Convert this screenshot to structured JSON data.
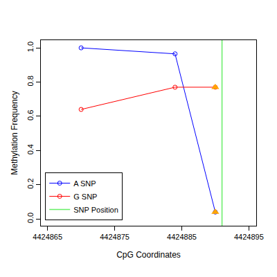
{
  "chart_data": {
    "type": "line",
    "x_label": "CpG Coordinates",
    "y_label": "Methylation Frequency",
    "xlim": [
      4424864,
      4424896.1
    ],
    "xticks": [
      4424865,
      4424875,
      4424885,
      4424895
    ],
    "ylim": [
      -0.04,
      1.045
    ],
    "yticks": [
      {
        "value": 0,
        "label": "0.0"
      },
      0.2,
      0.4,
      0.6,
      0.8,
      {
        "value": 1,
        "label": "1.0"
      }
    ],
    "grid": false,
    "legend": "bottom left",
    "series": [
      {
        "name": "A SNP",
        "type": "line",
        "color": "#0000ff",
        "marker": "circle-open",
        "x": [
          4424870,
          4424884,
          4424890
        ],
        "values": [
          1.0,
          0.965,
          0.04
        ]
      },
      {
        "name": "G SNP",
        "type": "line",
        "color": "#ff0000",
        "marker": "circle-open",
        "x": [
          4424870,
          4424884,
          4424890
        ],
        "values": [
          0.64,
          0.77,
          0.77
        ]
      },
      {
        "type": "scatter",
        "color": "#ffa500",
        "marker": "triangle-up",
        "x": [
          4424890,
          4424890
        ],
        "values": [
          0.04,
          0.77
        ]
      },
      {
        "name": "SNP Position",
        "type": "vline",
        "color": "#66ee66",
        "x": [
          4424891
        ]
      }
    ]
  }
}
